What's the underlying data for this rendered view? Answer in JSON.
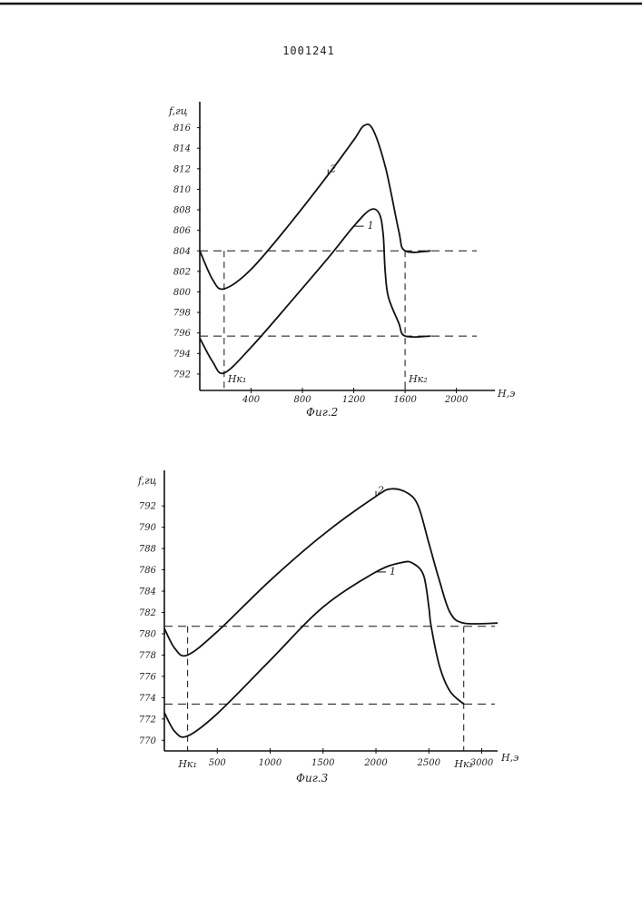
{
  "document": {
    "number": "1001241"
  },
  "chart_data": [
    {
      "type": "line",
      "caption": "Фиг.2",
      "ylabel": "f,гц",
      "xlabel": "H,э",
      "xlim": [
        0,
        2300
      ],
      "ylim": [
        790.4,
        818
      ],
      "x_ticks": [
        400,
        800,
        1200,
        1600,
        2000
      ],
      "x_tick_labels": [
        "400",
        "800",
        "1200",
        "1600",
        "2000"
      ],
      "y_ticks": [
        792,
        794,
        796,
        798,
        800,
        802,
        804,
        806,
        808,
        810,
        812,
        814,
        816
      ],
      "y_tick_labels": [
        "792",
        "794",
        "796",
        "798",
        "800",
        "802",
        "804",
        "806",
        "808",
        "810",
        "812",
        "814",
        "816"
      ],
      "marker_labels": [
        "Hк₁",
        "Hк₂"
      ],
      "markers_x": [
        190,
        1600
      ],
      "reference_lines_y": [
        804,
        795.7
      ],
      "series": [
        {
          "name": "1",
          "x": [
            0,
            100,
            190,
            400,
            700,
            1000,
            1200,
            1330,
            1400,
            1430,
            1445,
            1470,
            1550,
            1600,
            1800
          ],
          "y": [
            795.5,
            793.2,
            792.1,
            794.6,
            798.9,
            803.3,
            806.4,
            808.0,
            807.6,
            805.5,
            802,
            799.5,
            797,
            795.7,
            795.7
          ]
        },
        {
          "name": "2",
          "x": [
            0,
            100,
            190,
            400,
            700,
            1000,
            1200,
            1280,
            1350,
            1450,
            1550,
            1600,
            1800
          ],
          "y": [
            804,
            801.2,
            800.3,
            802.2,
            806.6,
            811.4,
            814.8,
            816.2,
            815.8,
            812,
            806,
            804,
            804
          ]
        }
      ]
    },
    {
      "type": "line",
      "caption": "Фиг.3",
      "ylabel": "f,гц",
      "xlabel": "H,э",
      "xlim": [
        0,
        3150
      ],
      "ylim": [
        769,
        795
      ],
      "x_ticks": [
        500,
        1000,
        1500,
        2000,
        2500,
        3000
      ],
      "x_tick_labels": [
        "500",
        "1000",
        "1500",
        "2000",
        "2500",
        "3000"
      ],
      "y_ticks": [
        770,
        772,
        774,
        776,
        778,
        780,
        782,
        784,
        786,
        788,
        790,
        792
      ],
      "y_tick_labels": [
        "770",
        "772",
        "774",
        "776",
        "778",
        "780",
        "782",
        "784",
        "786",
        "788",
        "790",
        "792"
      ],
      "marker_labels": [
        "Hк₁",
        "Hк₂"
      ],
      "markers_x": [
        220,
        2830
      ],
      "reference_lines_y": [
        780.7,
        773.4
      ],
      "series": [
        {
          "name": "1",
          "x": [
            0,
            100,
            220,
            500,
            1000,
            1500,
            2000,
            2250,
            2350,
            2450,
            2500,
            2520,
            2600,
            2700,
            2830
          ],
          "y": [
            772.6,
            770.8,
            770.4,
            772.5,
            777.5,
            782.5,
            785.8,
            786.7,
            786.6,
            785.5,
            782.5,
            780.8,
            777,
            774.6,
            773.4
          ]
        },
        {
          "name": "2",
          "x": [
            0,
            100,
            220,
            500,
            1000,
            1500,
            2000,
            2150,
            2300,
            2400,
            2500,
            2600,
            2700,
            2830,
            3150
          ],
          "y": [
            780.5,
            778.6,
            778,
            780.2,
            785,
            789.3,
            792.9,
            793.6,
            793.2,
            792,
            788.5,
            785,
            782,
            781,
            781
          ]
        }
      ]
    }
  ]
}
